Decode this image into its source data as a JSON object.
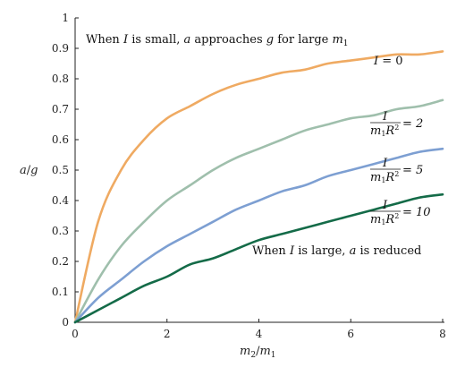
{
  "chart_data": {
    "type": "line",
    "xlabel": {
      "var": "m",
      "sub": "2",
      "slash": "/",
      "var2": "m",
      "sub2": "1"
    },
    "ylabel": {
      "var": "a",
      "slash": "/",
      "var2": "g"
    },
    "xlim": [
      0,
      8
    ],
    "ylim": [
      0,
      1
    ],
    "x_ticks": [
      0,
      2,
      4,
      6,
      8
    ],
    "y_ticks": [
      0,
      0.1,
      0.2,
      0.3,
      0.4,
      0.5,
      0.6,
      0.7,
      0.8,
      0.9,
      1
    ],
    "x_tick_labels": [
      "0",
      "2",
      "4",
      "6",
      "8"
    ],
    "y_tick_labels": [
      "0",
      "0.1",
      "0.2",
      "0.3",
      "0.4",
      "0.5",
      "0.6",
      "0.7",
      "0.8",
      "0.9",
      "1"
    ],
    "grid": false,
    "x": [
      0,
      0.5,
      1,
      1.5,
      2,
      2.5,
      3,
      3.5,
      4,
      4.5,
      5,
      5.5,
      6,
      6.5,
      7,
      7.5,
      8
    ],
    "series": [
      {
        "name": "I = 0",
        "color": "#efaa62",
        "values": [
          0,
          0.33,
          0.5,
          0.6,
          0.67,
          0.71,
          0.75,
          0.78,
          0.8,
          0.82,
          0.83,
          0.85,
          0.86,
          0.87,
          0.88,
          0.88,
          0.89
        ]
      },
      {
        "name": "I/(m1 R^2) = 2",
        "color": "#9fbfac",
        "values": [
          0,
          0.14,
          0.25,
          0.33,
          0.4,
          0.45,
          0.5,
          0.54,
          0.57,
          0.6,
          0.63,
          0.65,
          0.67,
          0.68,
          0.7,
          0.71,
          0.73
        ]
      },
      {
        "name": "I/(m1 R^2) = 5",
        "color": "#7d9fd2",
        "values": [
          0,
          0.08,
          0.14,
          0.2,
          0.25,
          0.29,
          0.33,
          0.37,
          0.4,
          0.43,
          0.45,
          0.48,
          0.5,
          0.52,
          0.54,
          0.56,
          0.57
        ]
      },
      {
        "name": "I/(m1 R^2) = 10",
        "color": "#146b48",
        "values": [
          0,
          0.04,
          0.08,
          0.12,
          0.15,
          0.19,
          0.21,
          0.24,
          0.27,
          0.29,
          0.31,
          0.33,
          0.35,
          0.37,
          0.39,
          0.41,
          0.42
        ]
      }
    ],
    "curve_labels": [
      {
        "kind": "plain",
        "text": "I = 0",
        "var": "I",
        "rest": " = 0"
      },
      {
        "kind": "frac",
        "num": "I",
        "den_m": "m",
        "den_sub": "1",
        "den_R": "R",
        "den_sup": "2",
        "eq": "= 2"
      },
      {
        "kind": "frac",
        "num": "I",
        "den_m": "m",
        "den_sub": "1",
        "den_R": "R",
        "den_sup": "2",
        "eq": "= 5"
      },
      {
        "kind": "frac",
        "num": "I",
        "den_m": "m",
        "den_sub": "1",
        "den_R": "R",
        "den_sup": "2",
        "eq": "= 10"
      }
    ],
    "annotations": {
      "top": {
        "p1": "When ",
        "v1": "I",
        "p2": " is small, ",
        "v2": "a",
        "p3": " approaches ",
        "v3": "g",
        "p4": " for large ",
        "v4": "m",
        "sub": "1"
      },
      "bottom": {
        "p1": "When ",
        "v1": "I",
        "p2": " is large, ",
        "v2": "a",
        "p3": " is reduced"
      }
    }
  }
}
